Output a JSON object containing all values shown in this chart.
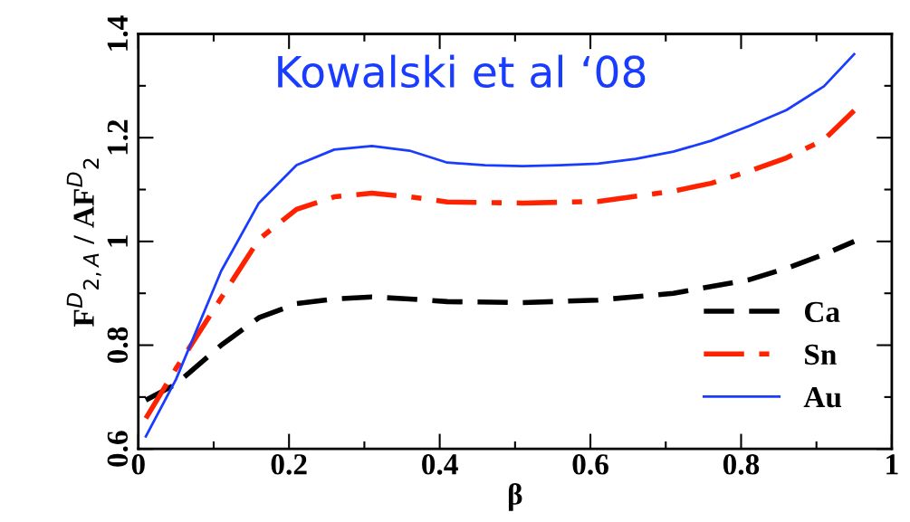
{
  "chart_data": {
    "type": "line",
    "xlabel": "β",
    "ylabel": "F$^{D}$$_{2,A}$ / AF$^{D}$$_{2}$",
    "annotations": [
      "Kowalski et al ‘08"
    ],
    "xlim": [
      0,
      1
    ],
    "xticks": [
      0,
      0.2,
      0.4,
      0.6,
      0.8,
      1
    ],
    "ylim": [
      0.6,
      1.4
    ],
    "yticks": [
      0.6,
      0.8,
      1,
      1.2,
      1.4
    ],
    "grid": false,
    "legend": "bottom right",
    "marker": "none",
    "series": [
      {
        "name": "Ca",
        "color": "#000000",
        "line_style": "dashed",
        "x": [
          0.01,
          0.05,
          0.11,
          0.16,
          0.21,
          0.26,
          0.31,
          0.36,
          0.41,
          0.51,
          0.61,
          0.71,
          0.81,
          0.86,
          0.91,
          0.95
        ],
        "values": [
          0.694,
          0.725,
          0.8,
          0.853,
          0.88,
          0.889,
          0.893,
          0.889,
          0.884,
          0.882,
          0.887,
          0.9,
          0.926,
          0.948,
          0.975,
          1.0
        ]
      },
      {
        "name": "Sn",
        "color": "#ff2200",
        "line_style": "dashdot",
        "x": [
          0.01,
          0.05,
          0.11,
          0.16,
          0.21,
          0.26,
          0.31,
          0.36,
          0.41,
          0.51,
          0.61,
          0.71,
          0.76,
          0.81,
          0.86,
          0.91,
          0.95
        ],
        "values": [
          0.659,
          0.755,
          0.891,
          1.004,
          1.062,
          1.086,
          1.093,
          1.086,
          1.076,
          1.074,
          1.077,
          1.097,
          1.112,
          1.135,
          1.161,
          1.196,
          1.252
        ]
      },
      {
        "name": "Au",
        "color": "#1a3cff",
        "line_style": "solid",
        "x": [
          0.01,
          0.05,
          0.11,
          0.16,
          0.21,
          0.26,
          0.31,
          0.36,
          0.41,
          0.46,
          0.51,
          0.56,
          0.61,
          0.66,
          0.71,
          0.76,
          0.81,
          0.86,
          0.91,
          0.95
        ],
        "values": [
          0.624,
          0.734,
          0.943,
          1.074,
          1.147,
          1.177,
          1.184,
          1.175,
          1.152,
          1.147,
          1.145,
          1.147,
          1.15,
          1.159,
          1.173,
          1.194,
          1.222,
          1.253,
          1.299,
          1.361
        ]
      }
    ]
  }
}
